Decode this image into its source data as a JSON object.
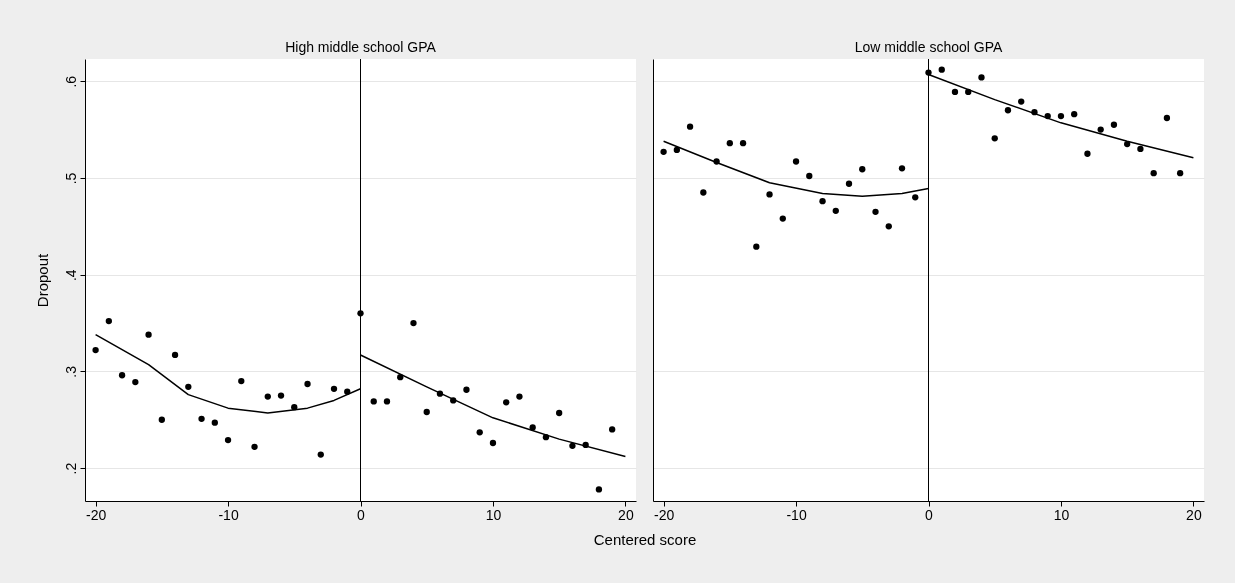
{
  "chart_data": [
    {
      "type": "scatter",
      "title": "High middle school GPA",
      "xlabel": "Centered score",
      "ylabel": "Dropout",
      "xlim": [
        -20.8,
        20.8
      ],
      "xticks": [
        -20,
        -10,
        0,
        10,
        20
      ],
      "ylim": [
        0.166,
        0.623
      ],
      "yticks": [
        {
          "value": 0.2,
          "label": ".2"
        },
        {
          "value": 0.3,
          "label": ".3"
        },
        {
          "value": 0.4,
          "label": ".4"
        },
        {
          "value": 0.5,
          "label": ".5"
        },
        {
          "value": 0.6,
          "label": ".6"
        }
      ],
      "grid": "y",
      "ref_lines": [
        {
          "axis": "x",
          "value": 0,
          "color": "#000000"
        }
      ],
      "series": [
        {
          "marker": "circle",
          "color": "#000000",
          "x": [
            -20,
            -19,
            -18,
            -17,
            -16,
            -15,
            -14,
            -13,
            -12,
            -11,
            -10,
            -9,
            -8,
            -7,
            -6,
            -5,
            -4,
            -3,
            -2,
            -1,
            0,
            1,
            2,
            3,
            4,
            5,
            6,
            7,
            8,
            9,
            10,
            11,
            12,
            13,
            14,
            15,
            16,
            17,
            18,
            19
          ],
          "values": [
            0.322,
            0.352,
            0.296,
            0.289,
            0.338,
            0.25,
            0.317,
            0.284,
            0.251,
            0.247,
            0.229,
            0.29,
            0.222,
            0.274,
            0.275,
            0.263,
            0.287,
            0.214,
            0.282,
            0.279,
            0.36,
            0.269,
            0.269,
            0.294,
            0.35,
            0.258,
            0.277,
            0.27,
            0.281,
            0.237,
            0.226,
            0.268,
            0.274,
            0.242,
            0.232,
            0.257,
            0.223,
            0.224,
            0.178,
            0.24
          ]
        },
        {
          "type": "line",
          "color": "#000000",
          "x": [
            -20,
            -16,
            -13,
            -10,
            -7,
            -4,
            -2,
            0
          ],
          "values": [
            0.338,
            0.307,
            0.276,
            0.262,
            0.257,
            0.262,
            0.27,
            0.282
          ]
        },
        {
          "type": "line",
          "color": "#000000",
          "x": [
            0,
            5,
            10,
            15,
            20
          ],
          "values": [
            0.317,
            0.284,
            0.252,
            0.23,
            0.212
          ]
        }
      ]
    },
    {
      "type": "scatter",
      "title": "Low middle school GPA",
      "xlim": [
        -20.8,
        20.8
      ],
      "xticks": [
        -20,
        -10,
        0,
        10,
        20
      ],
      "ylim": [
        0.166,
        0.623
      ],
      "yticks": [
        0.2,
        0.3,
        0.4,
        0.5,
        0.6
      ],
      "grid": "y",
      "tick_labels": "x",
      "ref_lines": [
        {
          "axis": "x",
          "value": 0,
          "color": "#000000"
        }
      ],
      "series": [
        {
          "marker": "circle",
          "color": "#000000",
          "x": [
            -20,
            -19,
            -18,
            -17,
            -16,
            -15,
            -14,
            -13,
            -12,
            -11,
            -10,
            -9,
            -8,
            -7,
            -6,
            -5,
            -4,
            -3,
            -2,
            -1,
            0,
            1,
            2,
            3,
            4,
            5,
            6,
            7,
            8,
            9,
            10,
            11,
            12,
            13,
            14,
            15,
            16,
            17,
            18,
            19
          ],
          "values": [
            0.527,
            0.529,
            0.553,
            0.485,
            0.517,
            0.536,
            0.536,
            0.429,
            0.483,
            0.458,
            0.517,
            0.502,
            0.476,
            0.466,
            0.494,
            0.509,
            0.465,
            0.45,
            0.51,
            0.48,
            0.609,
            0.612,
            0.589,
            0.589,
            0.604,
            0.541,
            0.57,
            0.579,
            0.568,
            0.564,
            0.564,
            0.566,
            0.525,
            0.55,
            0.555,
            0.535,
            0.53,
            0.505,
            0.562,
            0.505
          ]
        },
        {
          "type": "line",
          "color": "#000000",
          "x": [
            -20,
            -16,
            -12,
            -8,
            -5,
            -2,
            0
          ],
          "values": [
            0.538,
            0.516,
            0.495,
            0.484,
            0.481,
            0.484,
            0.489
          ]
        },
        {
          "type": "line",
          "color": "#000000",
          "x": [
            0,
            5,
            10,
            15,
            20
          ],
          "values": [
            0.607,
            0.581,
            0.557,
            0.538,
            0.521
          ]
        }
      ]
    }
  ]
}
